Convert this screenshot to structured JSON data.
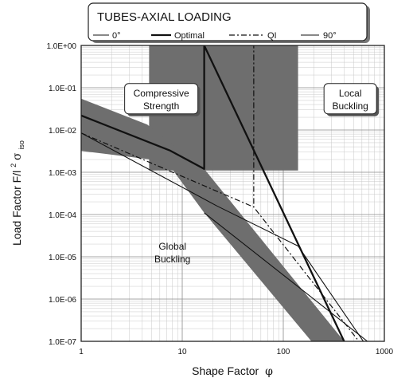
{
  "chart_data": {
    "type": "line",
    "title": "TUBES-AXIAL LOADING",
    "xlabel": "Shape Factor",
    "xlabel_symbol": "φ",
    "ylabel": "Load Factor F/l",
    "ylabel_sigma": "σ",
    "ylabel_sub": "iso",
    "xscale": "log",
    "yscale": "log",
    "xlim": [
      1,
      1000
    ],
    "ylim": [
      1e-07,
      1
    ],
    "grid": true,
    "legend_position": "top",
    "x_tick_labels": [
      {
        "value": 1,
        "label": "1"
      },
      {
        "value": 10,
        "label": "10"
      },
      {
        "value": 100,
        "label": "100"
      },
      {
        "value": 1000,
        "label": "1000"
      }
    ],
    "y_tick_labels": [
      {
        "value": 1,
        "label": "1.0E+00"
      },
      {
        "value": 0.1,
        "label": "1.0E-01"
      },
      {
        "value": 0.01,
        "label": "1.0E-02"
      },
      {
        "value": 0.001,
        "label": "1.0E-03"
      },
      {
        "value": 0.0001,
        "label": "1.0E-04"
      },
      {
        "value": 1e-05,
        "label": "1.0E-05"
      },
      {
        "value": 1e-06,
        "label": "1.0E-06"
      },
      {
        "value": 1e-07,
        "label": "1.0E-07"
      }
    ],
    "shaded_regions": [
      {
        "x_range": [
          4.7,
          140
        ],
        "y_range": [
          0.0011,
          1
        ]
      },
      {
        "points": [
          [
            1,
            0.055
          ],
          [
            4.5,
            0.0135
          ],
          [
            16.5,
            0.0012
          ],
          [
            400,
            1e-07
          ],
          [
            190,
            1e-07
          ],
          [
            16.5,
            0.00011
          ],
          [
            7,
            0.0018
          ],
          [
            1,
            0.0032
          ]
        ]
      }
    ],
    "series": [
      {
        "name": "0°",
        "style": "solid-thin",
        "x": [
          1,
          22,
          140,
          620
        ],
        "y": [
          0.0085,
          0.00016,
          1.8e-05,
          1e-07
        ]
      },
      {
        "name": "Optimal",
        "style": "solid-thick",
        "x": [
          1,
          7.5,
          16.5,
          16.5,
          400
        ],
        "y": [
          0.022,
          0.0033,
          0.0012,
          1,
          1e-07
        ]
      },
      {
        "name": "QI",
        "style": "dash-dot",
        "x": [
          1,
          51,
          51,
          51,
          560
        ],
        "y": [
          0.0085,
          0.00015,
          1,
          0.00015,
          1e-07
        ]
      },
      {
        "name": "90°",
        "style": "solid-thin",
        "x": [
          16.5,
          680
        ],
        "y": [
          0.00011,
          1e-07
        ]
      }
    ],
    "region_labels": [
      {
        "lines": [
          "Compressive",
          "Strength"
        ],
        "x": 6.2,
        "y": 0.055,
        "boxed": true
      },
      {
        "lines": [
          "Local",
          "Buckling"
        ],
        "x": 460,
        "y": 0.055,
        "boxed": true
      },
      {
        "lines": [
          "Global",
          "Buckling"
        ],
        "x": 8,
        "y": 1.3e-05,
        "boxed": false
      }
    ]
  }
}
